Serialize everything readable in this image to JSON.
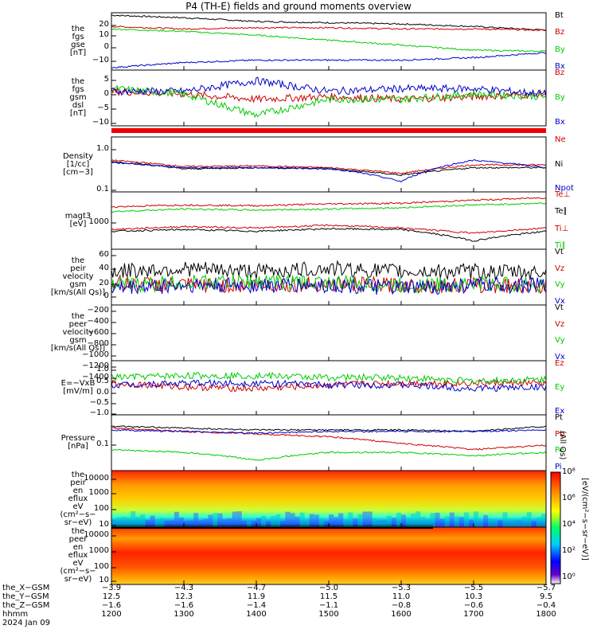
{
  "title": "P4 (TH-E) fields and ground moments overview",
  "panels": [
    {
      "id": "fgs_gse",
      "ylabel": [
        "the",
        "fgs",
        "gse",
        "[nT]"
      ],
      "yticks": [
        "20",
        "10",
        "0",
        "−10"
      ],
      "ylim": [
        -18,
        28
      ],
      "legend": [
        {
          "name": "Bt",
          "color": "#000000"
        },
        {
          "name": "Bz",
          "color": "#cc0000"
        },
        {
          "name": "By",
          "color": "#00cc00"
        },
        {
          "name": "Bx",
          "color": "#0000cc"
        }
      ]
    },
    {
      "id": "fgs_gsm_dsl",
      "ylabel": [
        "the",
        "fgs",
        "gsm",
        "dsl",
        "[nT]"
      ],
      "yticks": [
        "5",
        "0",
        "−5",
        "−10"
      ],
      "ylim": [
        -13,
        8
      ],
      "legend": [
        {
          "name": "Bz",
          "color": "#cc0000"
        },
        {
          "name": "By",
          "color": "#00cc00"
        },
        {
          "name": "Bx",
          "color": "#0000cc"
        }
      ]
    },
    {
      "id": "density",
      "ylabel": [
        "Density",
        "[1/cc]",
        "[cm−3]"
      ],
      "yticks": [
        "1.0",
        "0.1"
      ],
      "ylim_log": [
        0.08,
        1.6
      ],
      "legend": [
        {
          "name": "Ne",
          "color": "#cc0000"
        },
        {
          "name": "Ni",
          "color": "#000000"
        },
        {
          "name": "Npot",
          "color": "#0000cc"
        }
      ]
    },
    {
      "id": "temperature",
      "ylabel": [
        "magt3",
        "[eV]"
      ],
      "yticks": [
        "1000"
      ],
      "ylim_log": [
        300,
        10000
      ],
      "legend": [
        {
          "name": "Te⊥",
          "color": "#cc0000"
        },
        {
          "name": "Te∥",
          "color": "#000000"
        },
        {
          "name": "Ti⊥",
          "color": "#cc0000"
        },
        {
          "name": "Ti∥",
          "color": "#00cc00"
        }
      ]
    },
    {
      "id": "peir_velocity",
      "ylabel": [
        "the",
        "peir",
        "velocity",
        "gsm",
        "[km/s(All Qs)]"
      ],
      "yticks": [
        "60",
        "40",
        "20",
        "0",
        "−20"
      ],
      "ylim": [
        -30,
        70
      ],
      "legend": [
        {
          "name": "Vt",
          "color": "#000000"
        },
        {
          "name": "Vz",
          "color": "#cc0000"
        },
        {
          "name": "Vy",
          "color": "#00cc00"
        },
        {
          "name": "Vx",
          "color": "#0000cc"
        }
      ]
    },
    {
      "id": "peer_velocity",
      "ylabel": [
        "the",
        "peer",
        "velocity",
        "gsm",
        "[km/s(All Qs)]"
      ],
      "yticks": [
        "−200",
        "−400",
        "−600",
        "−800",
        "−1000",
        "−1200",
        "−1400"
      ],
      "ylim": [
        -1480,
        -80
      ],
      "legend": [
        {
          "name": "Vt",
          "color": "#000000"
        },
        {
          "name": "Vz",
          "color": "#cc0000"
        },
        {
          "name": "Vy",
          "color": "#00cc00"
        },
        {
          "name": "Vx",
          "color": "#0000cc"
        }
      ]
    },
    {
      "id": "efield",
      "ylabel": [
        "E=−VxB",
        "[mV/m]"
      ],
      "yticks": [
        "1.0",
        "0.5",
        "0.0",
        "−0.5",
        "−1.0",
        "−1.5"
      ],
      "ylim": [
        -1.7,
        1.2
      ],
      "legend": [
        {
          "name": "Ez",
          "color": "#cc0000"
        },
        {
          "name": "Ey",
          "color": "#00cc00"
        },
        {
          "name": "Ex",
          "color": "#0000cc"
        }
      ]
    },
    {
      "id": "pressure",
      "ylabel": [
        "Pressure",
        "[nPa]"
      ],
      "yticks": [
        "0.1"
      ],
      "ylim_log": [
        0.015,
        0.6
      ],
      "legend": [
        {
          "name": "Pt",
          "color": "#000000"
        },
        {
          "name": "Pb",
          "color": "#cc0000"
        },
        {
          "name": "Pe",
          "color": "#00cc00"
        },
        {
          "name": "Pi",
          "color": "#0000cc"
        }
      ],
      "side_label": "(All Qs)"
    },
    {
      "id": "peir_eflux",
      "ylabel": [
        "the",
        "peir",
        "en",
        "eflux",
        "eV",
        "(cm²−s−",
        "sr−eV)"
      ],
      "yticks": [
        "10000",
        "1000",
        "100",
        "10"
      ]
    },
    {
      "id": "peer_eflux",
      "ylabel": [
        "the",
        "peer",
        "en",
        "eflux",
        "eV",
        "(cm²−s−",
        "sr−eV)"
      ],
      "yticks": [
        "10000",
        "1000",
        "100",
        "10"
      ]
    }
  ],
  "colorbar": {
    "ticks": [
      "10⁸",
      "10⁶",
      "10⁴",
      "10²",
      "10⁰"
    ],
    "label": "[eV/(cm²−s−sr−eV)]"
  },
  "orbit_rows": [
    {
      "name": "the_X−GSM",
      "values": [
        "−3.9",
        "−4.3",
        "−4.7",
        "−5.0",
        "−5.3",
        "−5.5",
        "−5.7"
      ]
    },
    {
      "name": "the_Y−GSM",
      "values": [
        "12.5",
        "12.3",
        "11.9",
        "11.5",
        "11.0",
        "10.3",
        "9.5"
      ]
    },
    {
      "name": "the_Z−GSM",
      "values": [
        "−1.6",
        "−1.6",
        "−1.4",
        "−1.1",
        "−0.8",
        "−0.6",
        "−0.4"
      ]
    },
    {
      "name": "hhmm",
      "values": [
        "1200",
        "1300",
        "1400",
        "1500",
        "1600",
        "1700",
        "1800"
      ]
    }
  ],
  "date": "2024 Jan 09",
  "chart_data": {
    "type": "line",
    "x": [
      "1200",
      "1300",
      "1400",
      "1500",
      "1600",
      "1700",
      "1800"
    ],
    "series": [
      {
        "panel": "fgs_gse",
        "name": "Bt",
        "values": [
          26,
          24,
          21,
          20,
          19,
          17,
          14
        ]
      },
      {
        "panel": "fgs_gse",
        "name": "Bz",
        "values": [
          17,
          15,
          16,
          16,
          15,
          15,
          14
        ]
      },
      {
        "panel": "fgs_gse",
        "name": "By",
        "values": [
          15,
          13,
          10,
          6,
          2,
          -2,
          -3
        ]
      },
      {
        "panel": "fgs_gse",
        "name": "Bx",
        "values": [
          -16,
          -12,
          -10,
          -10,
          -10,
          -8,
          -4
        ]
      },
      {
        "panel": "fgs_gsm_dsl",
        "name": "Bz",
        "values": [
          0,
          -1,
          -3,
          -2,
          -3,
          -2,
          -1
        ]
      },
      {
        "panel": "fgs_gsm_dsl",
        "name": "By",
        "values": [
          1,
          -1,
          -9,
          -3,
          -3,
          -1,
          -2
        ]
      },
      {
        "panel": "fgs_gsm_dsl",
        "name": "Bx",
        "values": [
          0,
          0,
          4,
          0,
          1,
          1,
          -1
        ]
      },
      {
        "panel": "density",
        "name": "Ne",
        "values": [
          0.45,
          0.32,
          0.33,
          0.3,
          0.22,
          0.35,
          0.35
        ]
      },
      {
        "panel": "density",
        "name": "Ni",
        "values": [
          0.42,
          0.28,
          0.3,
          0.28,
          0.2,
          0.3,
          0.3
        ]
      },
      {
        "panel": "density",
        "name": "Npot",
        "values": [
          0.4,
          0.3,
          0.3,
          0.29,
          0.14,
          0.45,
          0.3
        ]
      },
      {
        "panel": "temperature",
        "name": "Te⊥",
        "values": [
          1000,
          1200,
          1100,
          1300,
          1100,
          800,
          1100
        ]
      },
      {
        "panel": "temperature",
        "name": "Te∥",
        "values": [
          900,
          1000,
          900,
          1050,
          1000,
          500,
          900
        ]
      },
      {
        "panel": "temperature",
        "name": "Ti⊥",
        "values": [
          4000,
          4500,
          4300,
          4800,
          5000,
          6000,
          7000
        ]
      },
      {
        "panel": "temperature",
        "name": "Ti∥",
        "values": [
          3000,
          3500,
          3300,
          3500,
          3800,
          4500,
          5000
        ]
      },
      {
        "panel": "peir_velocity",
        "name": "Vt",
        "values": [
          30,
          35,
          30,
          35,
          30,
          30,
          28
        ]
      },
      {
        "panel": "peir_velocity",
        "name": "Vz",
        "values": [
          10,
          5,
          5,
          8,
          5,
          5,
          5
        ]
      },
      {
        "panel": "peir_velocity",
        "name": "Vy",
        "values": [
          5,
          10,
          12,
          10,
          5,
          8,
          5
        ]
      },
      {
        "panel": "peir_velocity",
        "name": "Vx",
        "values": [
          0,
          5,
          5,
          5,
          0,
          5,
          5
        ]
      },
      {
        "panel": "efield",
        "name": "Ez",
        "values": [
          0.0,
          -0.2,
          -0.3,
          -0.1,
          0.0,
          0.0,
          0.0
        ]
      },
      {
        "panel": "efield",
        "name": "Ey",
        "values": [
          0.3,
          0.4,
          0.4,
          0.3,
          0.3,
          0.1,
          0.2
        ]
      },
      {
        "panel": "efield",
        "name": "Ex",
        "values": [
          -0.1,
          0.0,
          0.0,
          -0.1,
          -0.1,
          -0.3,
          -0.2
        ]
      },
      {
        "panel": "pressure",
        "name": "Pt",
        "values": [
          0.28,
          0.25,
          0.22,
          0.22,
          0.22,
          0.2,
          0.28
        ]
      },
      {
        "panel": "pressure",
        "name": "Pb",
        "values": [
          0.25,
          0.2,
          0.17,
          0.14,
          0.09,
          0.06,
          0.08
        ]
      },
      {
        "panel": "pressure",
        "name": "Pe",
        "values": [
          0.06,
          0.05,
          0.03,
          0.05,
          0.05,
          0.04,
          0.05
        ]
      },
      {
        "panel": "pressure",
        "name": "Pi",
        "values": [
          0.22,
          0.2,
          0.18,
          0.2,
          0.2,
          0.2,
          0.22
        ]
      }
    ]
  }
}
